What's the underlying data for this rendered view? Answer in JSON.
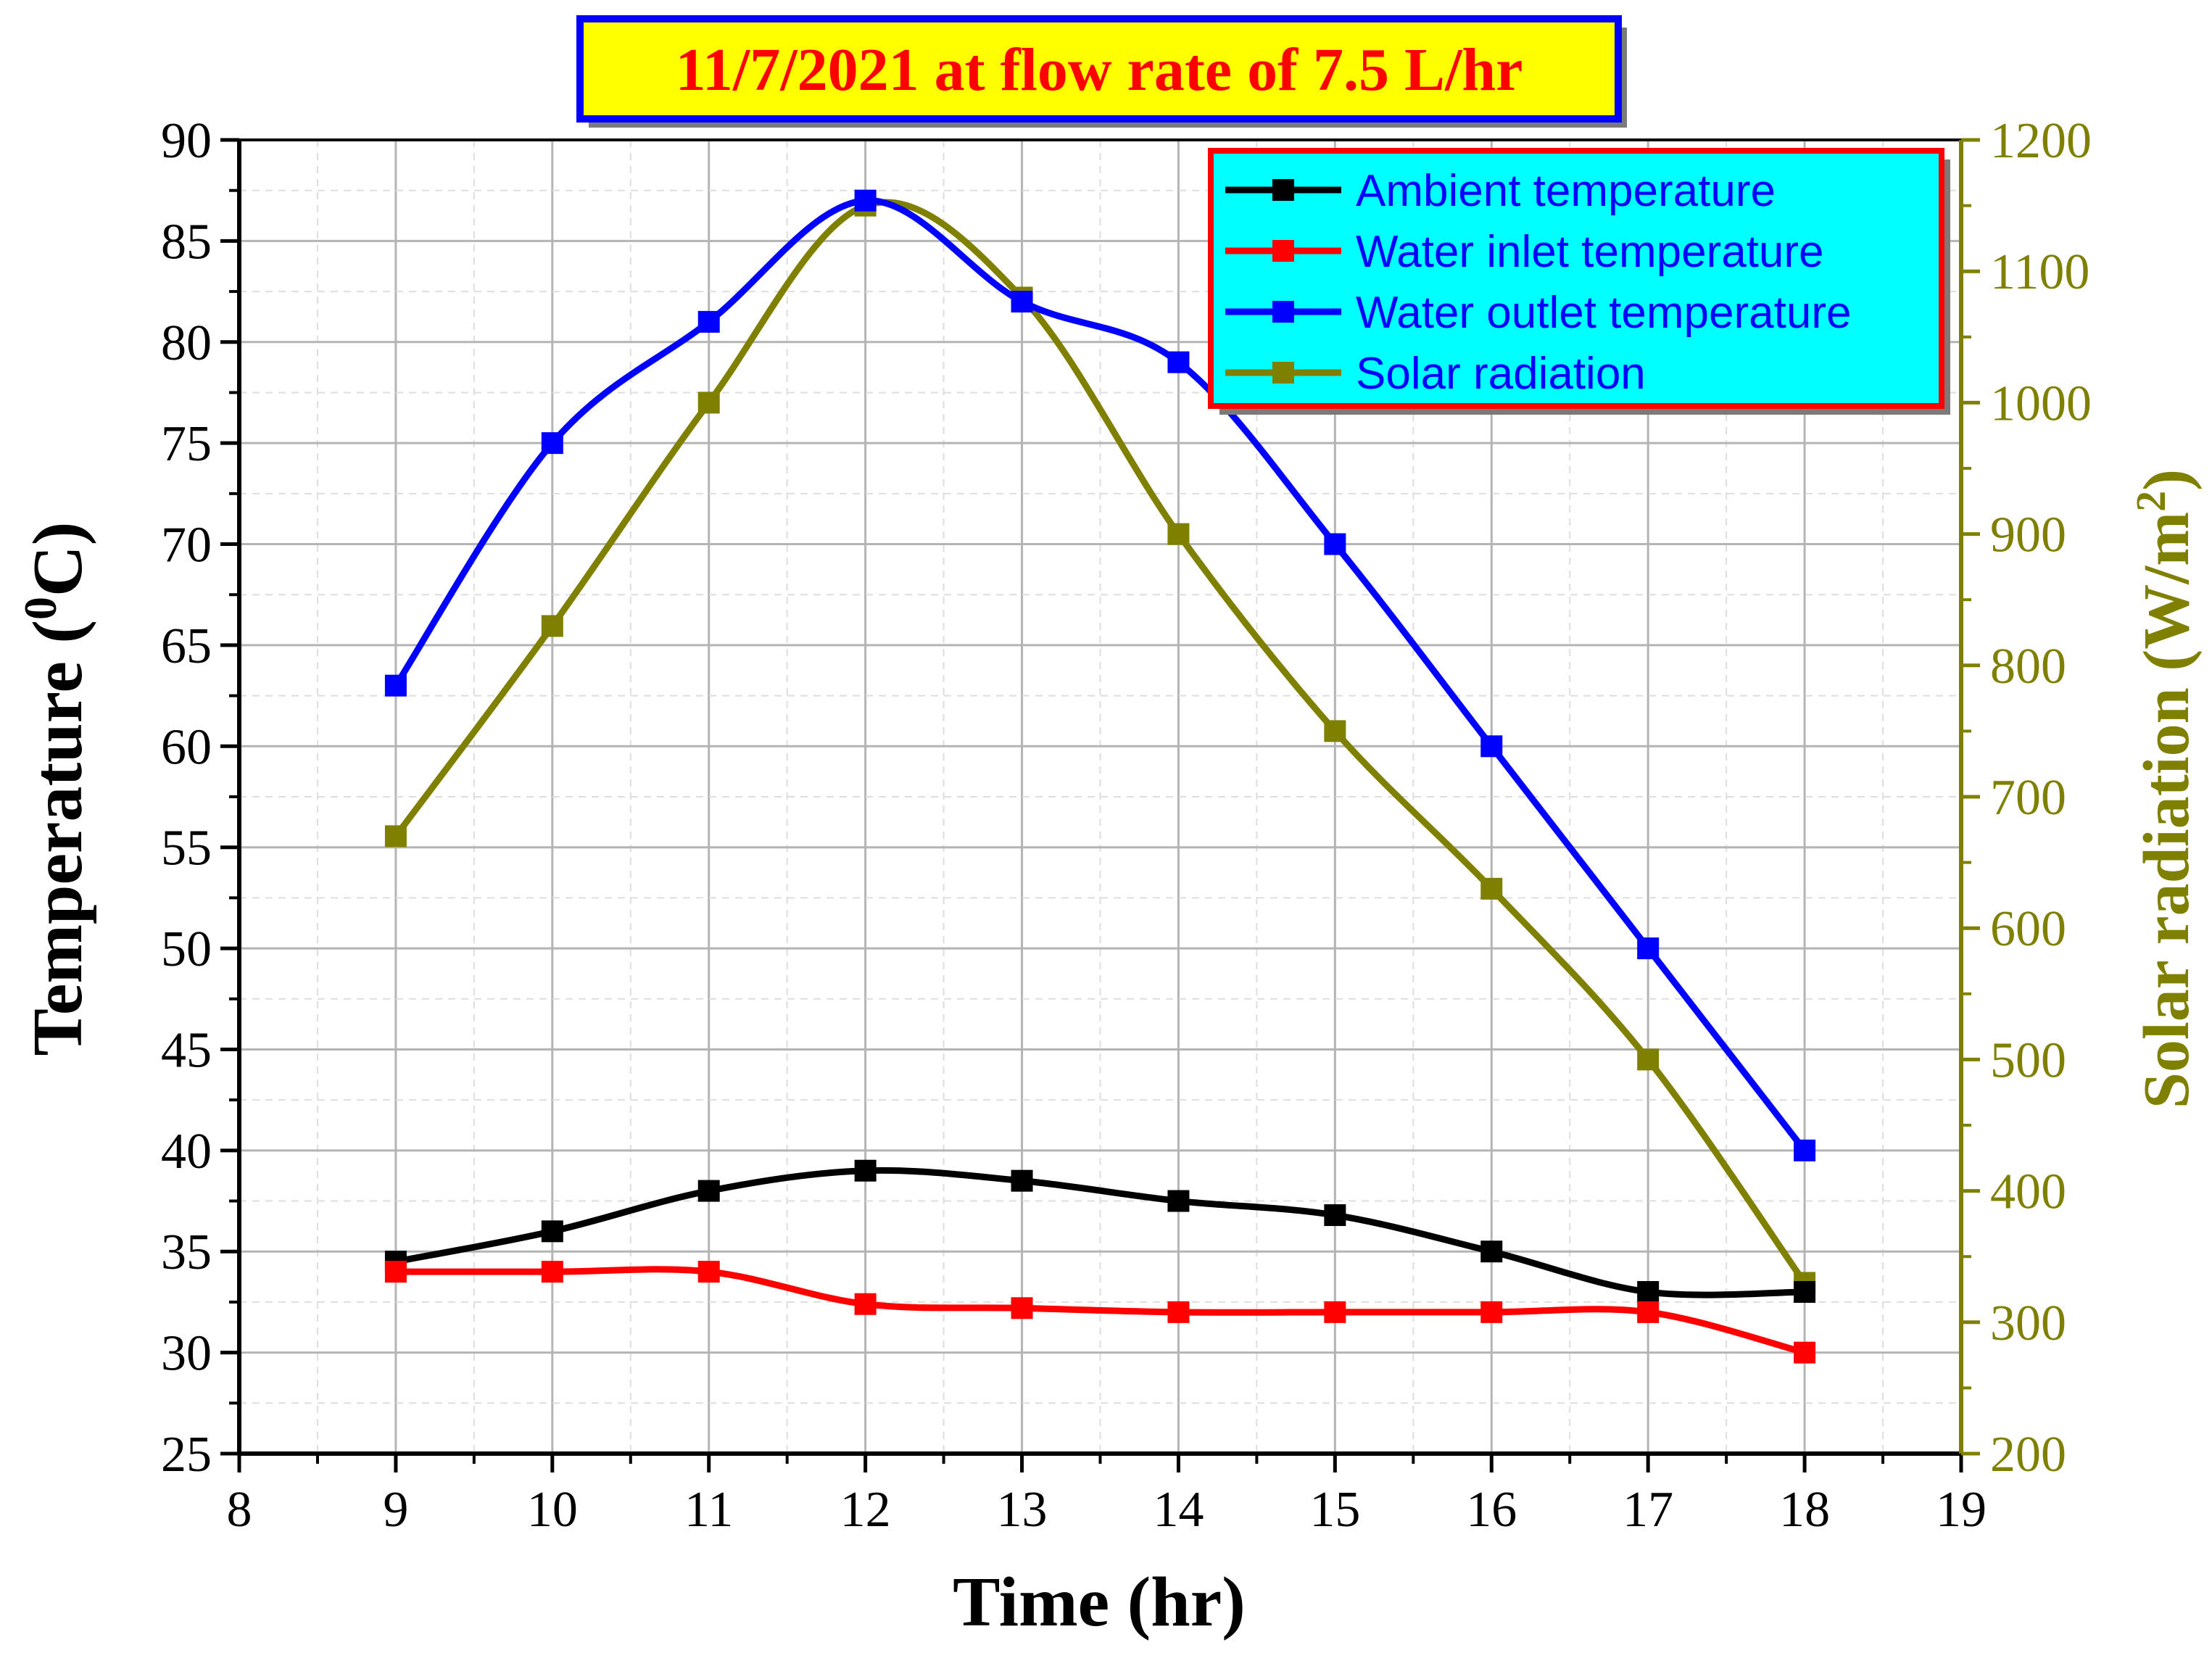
{
  "chart_data": {
    "type": "line",
    "title": "11/7/2021 at flow rate of 7.5 L/hr",
    "xlabel": "Time (hr)",
    "ylabel": "Temperature (",
    "ylabel_sup": "0",
    "ylabel_tail": "C)",
    "y2label": "Solar radiation (W/m",
    "y2label_sup": "2",
    "y2label_tail": ")",
    "xlim": [
      8,
      19
    ],
    "ylim": [
      25,
      90
    ],
    "y2lim": [
      200,
      1200
    ],
    "x_ticks": [
      8,
      9,
      10,
      11,
      12,
      13,
      14,
      15,
      16,
      17,
      18,
      19
    ],
    "y_ticks": [
      25,
      30,
      35,
      40,
      45,
      50,
      55,
      60,
      65,
      70,
      75,
      80,
      85,
      90
    ],
    "y2_ticks": [
      200,
      300,
      400,
      500,
      600,
      700,
      800,
      900,
      1000,
      1100,
      1200
    ],
    "grid": true,
    "legend_position": "top-right",
    "x": [
      9,
      10,
      11,
      12,
      13,
      14,
      15,
      16,
      17,
      18
    ],
    "series": [
      {
        "name": "Ambient temperature",
        "axis": "left",
        "color": "#000000",
        "values": [
          34.5,
          36,
          38,
          39,
          38.5,
          37.5,
          36.8,
          35,
          33,
          33
        ]
      },
      {
        "name": "Water inlet temperature",
        "axis": "left",
        "color": "#ff0000",
        "values": [
          34,
          34,
          34,
          32.4,
          32.2,
          32,
          32,
          32,
          32,
          30
        ]
      },
      {
        "name": "Water outlet temperature",
        "axis": "left",
        "color": "#0000ff",
        "values": [
          63,
          75,
          81,
          87,
          82,
          79,
          70,
          60,
          50,
          40
        ]
      },
      {
        "name": "Solar radiation",
        "axis": "right",
        "color": "#808000",
        "values": [
          670,
          830,
          1000,
          1150,
          1080,
          900,
          750,
          630,
          500,
          330
        ]
      }
    ],
    "colors": {
      "title_bg": "#ffff00",
      "title_text": "#ff0000",
      "title_border": "#0000ff",
      "legend_bg": "#00ffff",
      "legend_border": "#ff0000",
      "legend_text": "#0000ff",
      "right_axis": "#808000",
      "grid": "#c8c8c8"
    }
  }
}
